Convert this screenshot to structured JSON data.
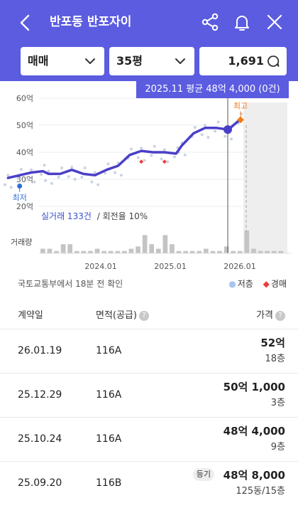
{
  "header": {
    "title": "반포동 반포자이",
    "back_icon": "chevron-left-icon",
    "share_icon": "share-icon",
    "bell_icon": "bell-icon",
    "close_icon": "close-icon"
  },
  "filters": {
    "trade_type": "매매",
    "size": "35평",
    "count": "1,691"
  },
  "tooltip": "2025.11 평균 48억 4,000 (0건)",
  "chart_data": {
    "type": "line",
    "y_ticks": [
      "60억",
      "50억",
      "40억",
      "30억",
      "20억"
    ],
    "x_ticks": [
      "2024.01",
      "2025.01",
      "2026.01"
    ],
    "ylim": [
      20,
      60
    ],
    "y_unit": "억",
    "avg_line": [
      [
        "2022.09",
        30.5
      ],
      [
        "2022.11",
        31.5
      ],
      [
        "2023.01",
        32.5
      ],
      [
        "2023.03",
        33
      ],
      [
        "2023.04",
        32
      ],
      [
        "2023.06",
        32
      ],
      [
        "2023.08",
        33.5
      ],
      [
        "2023.10",
        32
      ],
      [
        "2023.12",
        31.5
      ],
      [
        "2024.02",
        33.5
      ],
      [
        "2024.04",
        35
      ],
      [
        "2024.06",
        39
      ],
      [
        "2024.08",
        40.5
      ],
      [
        "2024.10",
        40
      ],
      [
        "2024.12",
        40
      ],
      [
        "2025.02",
        39.5
      ],
      [
        "2025.03",
        42.5
      ],
      [
        "2025.05",
        47
      ],
      [
        "2025.07",
        49
      ],
      [
        "2025.09",
        49
      ],
      [
        "2025.11",
        48.4
      ],
      [
        "2026.01",
        52
      ]
    ],
    "low_point": {
      "label": "최저",
      "x": "2022.11",
      "y": 27.5
    },
    "high_point": {
      "label": "최고",
      "x": "2026.01",
      "y": 52
    },
    "auction_points": [
      [
        "2024.08",
        36.5
      ],
      [
        "2024.12",
        36.5
      ]
    ],
    "volume_label": "거래량",
    "volume": [
      2,
      2,
      1,
      4,
      4,
      1,
      1,
      1,
      2,
      1,
      1,
      1,
      1,
      2,
      3,
      8,
      4,
      2,
      8,
      4,
      1,
      1,
      1,
      1,
      2,
      1,
      1,
      3,
      1,
      1,
      10,
      2,
      1,
      1,
      1,
      1
    ],
    "summary_count": "실거래 133건",
    "summary_rate": "/ 회전율 10%"
  },
  "source_text": "국토교통부에서 18분 전 확인",
  "legend": {
    "dot_low": "저층",
    "dot_auction": "경매"
  },
  "table": {
    "headers": {
      "date": "계약일",
      "area": "면적(공급)",
      "price": "가격"
    },
    "rows": [
      {
        "date": "26.01.19",
        "area": "116A",
        "price": "52억",
        "floor": "18층",
        "badge": ""
      },
      {
        "date": "25.12.29",
        "area": "116A",
        "price": "50억 1,000",
        "floor": "3층",
        "badge": ""
      },
      {
        "date": "25.10.24",
        "area": "116A",
        "price": "48억 4,000",
        "floor": "9층",
        "badge": ""
      },
      {
        "date": "25.09.20",
        "area": "116B",
        "price": "48억 8,000",
        "floor": "125동/15층",
        "badge": "등기"
      }
    ]
  },
  "colors": {
    "brand": "#5b5ce0",
    "line": "#4a3fc8",
    "high": "#f07a1a",
    "low": "#2f6fd6",
    "auction": "#e9403b",
    "dot": "#c9d3e3"
  }
}
